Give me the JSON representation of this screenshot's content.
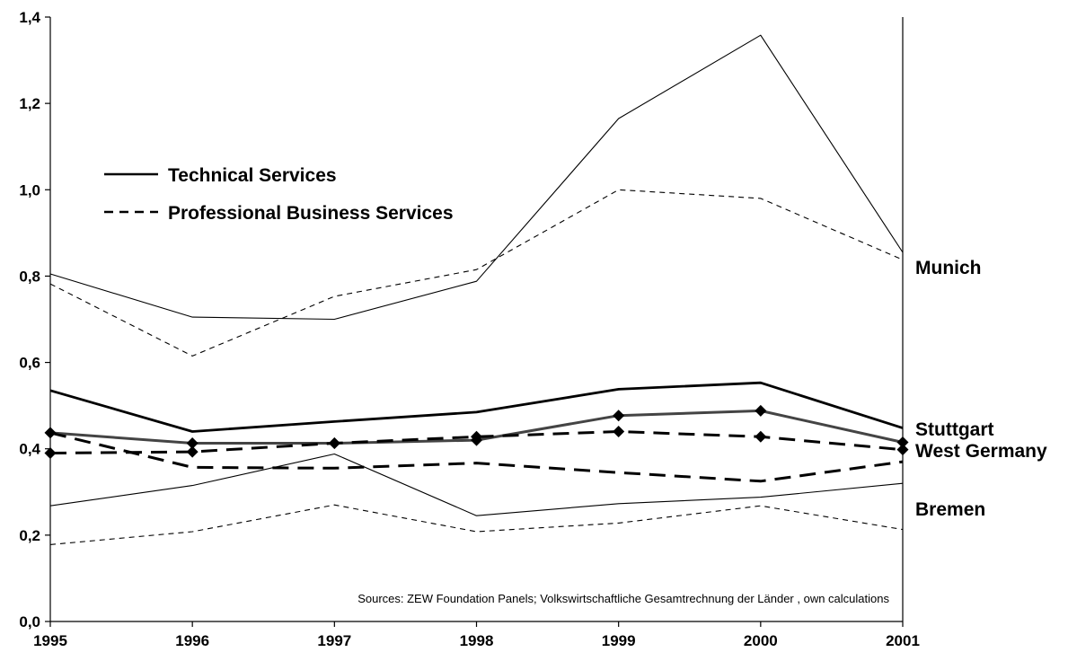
{
  "chart_data": {
    "type": "line",
    "x": [
      1995,
      1996,
      1997,
      1998,
      1999,
      2000,
      2001
    ],
    "x_tick_labels": [
      "1995",
      "1996",
      "1997",
      "1998",
      "1999",
      "2000",
      "2001"
    ],
    "ylim": [
      0,
      1.4
    ],
    "y_tick_labels": [
      "0,0",
      "0,2",
      "0,4",
      "0,6",
      "0,8",
      "1,0",
      "1,2",
      "1,4"
    ],
    "grid": false,
    "legend": [
      {
        "label": "Technical Services",
        "style": "solid"
      },
      {
        "label": "Professional Business Services",
        "style": "dashed"
      }
    ],
    "series": [
      {
        "region": "Munich",
        "sector": "Technical Services",
        "style": "solid-thin",
        "values": [
          0.805,
          0.705,
          0.7,
          0.788,
          1.165,
          1.358,
          0.855
        ]
      },
      {
        "region": "Munich",
        "sector": "Professional Business Services",
        "style": "dashed-thin",
        "values": [
          0.782,
          0.615,
          0.753,
          0.815,
          1.0,
          0.98,
          0.838
        ]
      },
      {
        "region": "Stuttgart",
        "sector": "Technical Services",
        "style": "solid-thick",
        "values": [
          0.535,
          0.44,
          0.463,
          0.485,
          0.538,
          0.553,
          0.448
        ]
      },
      {
        "region": "West Germany",
        "sector": "Technical Services",
        "style": "solid-gray-diamond",
        "values": [
          0.437,
          0.413,
          0.413,
          0.42,
          0.477,
          0.488,
          0.415
        ]
      },
      {
        "region": "West Germany",
        "sector": "Professional Business Services",
        "style": "dashed-thick-diamond",
        "values": [
          0.39,
          0.393,
          0.413,
          0.428,
          0.44,
          0.428,
          0.398
        ]
      },
      {
        "region": "Stuttgart",
        "sector": "Professional Business Services",
        "style": "dashed-thick",
        "values": [
          0.437,
          0.357,
          0.355,
          0.367,
          0.345,
          0.325,
          0.37
        ]
      },
      {
        "region": "Bremen",
        "sector": "Technical Services",
        "style": "solid-thin",
        "values": [
          0.268,
          0.315,
          0.388,
          0.245,
          0.273,
          0.288,
          0.32
        ]
      },
      {
        "region": "Bremen",
        "sector": "Professional Business Services",
        "style": "dashed-thin",
        "values": [
          0.178,
          0.208,
          0.27,
          0.208,
          0.228,
          0.268,
          0.213
        ]
      }
    ],
    "region_labels": [
      {
        "text": "Munich",
        "value": 0.82
      },
      {
        "text": "Stuttgart",
        "value": 0.445
      },
      {
        "text": "West Germany",
        "value": 0.395
      },
      {
        "text": "Bremen",
        "value": 0.26
      }
    ],
    "annotation": "Sources: ZEW Foundation Panels; Volkswirtschaftliche Gesamtrechnung der Länder , own calculations"
  }
}
